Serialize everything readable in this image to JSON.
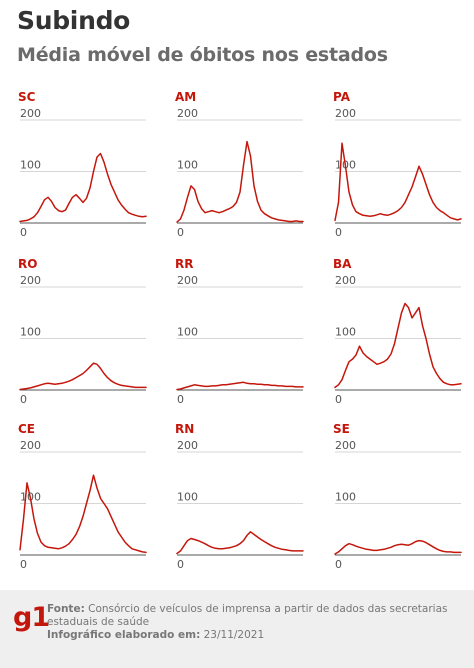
{
  "header": {
    "title": "Subindo",
    "subtitle": "Média móvel de óbitos nos estados"
  },
  "footer": {
    "logo": "g1",
    "source_label": "Fonte:",
    "source_text": "Consórcio de veículos de imprensa a partir de dados das secretarias estaduais de saúde",
    "made_label": "Infográfico elaborado em:",
    "made_date": "23/11/2021"
  },
  "colors": {
    "series": "#c4170c",
    "state_label": "#c4170c",
    "footer_bg": "#efefef"
  },
  "chart_data": [
    {
      "type": "line",
      "title": "SC",
      "ylim": [
        0,
        200
      ],
      "yticks": [
        0,
        100,
        200
      ],
      "grid": true,
      "series": [
        {
          "values": [
            3,
            4,
            5,
            8,
            12,
            20,
            32,
            45,
            50,
            42,
            30,
            24,
            22,
            25,
            38,
            50,
            55,
            48,
            40,
            48,
            68,
            100,
            128,
            135,
            118,
            95,
            75,
            60,
            45,
            35,
            27,
            20,
            17,
            15,
            13,
            12,
            13
          ]
        }
      ]
    },
    {
      "type": "line",
      "title": "AM",
      "ylim": [
        0,
        200
      ],
      "yticks": [
        0,
        100,
        200
      ],
      "grid": true,
      "series": [
        {
          "values": [
            2,
            8,
            25,
            50,
            72,
            65,
            42,
            28,
            20,
            22,
            24,
            22,
            20,
            22,
            25,
            28,
            32,
            40,
            60,
            112,
            158,
            130,
            72,
            42,
            25,
            18,
            14,
            10,
            8,
            6,
            5,
            4,
            3,
            3,
            4,
            3,
            3
          ]
        }
      ]
    },
    {
      "type": "line",
      "title": "PA",
      "ylim": [
        0,
        200
      ],
      "yticks": [
        0,
        100,
        200
      ],
      "grid": true,
      "series": [
        {
          "values": [
            5,
            40,
            155,
            110,
            60,
            35,
            22,
            18,
            15,
            14,
            13,
            14,
            16,
            18,
            16,
            15,
            17,
            20,
            24,
            30,
            40,
            55,
            70,
            90,
            110,
            95,
            75,
            55,
            40,
            30,
            24,
            20,
            15,
            10,
            8,
            6,
            8
          ]
        }
      ]
    },
    {
      "type": "line",
      "title": "RO",
      "ylim": [
        0,
        200
      ],
      "yticks": [
        0,
        100,
        200
      ],
      "grid": true,
      "series": [
        {
          "values": [
            1,
            2,
            3,
            4,
            6,
            8,
            10,
            12,
            13,
            12,
            11,
            12,
            13,
            15,
            17,
            20,
            24,
            28,
            32,
            38,
            45,
            52,
            50,
            42,
            32,
            24,
            18,
            14,
            11,
            9,
            8,
            7,
            6,
            5,
            5,
            5,
            5
          ]
        }
      ]
    },
    {
      "type": "line",
      "title": "RR",
      "ylim": [
        0,
        200
      ],
      "yticks": [
        0,
        100,
        200
      ],
      "grid": true,
      "series": [
        {
          "values": [
            1,
            2,
            4,
            6,
            8,
            10,
            9,
            8,
            7,
            7,
            8,
            8,
            9,
            10,
            10,
            11,
            12,
            13,
            14,
            15,
            13,
            12,
            12,
            11,
            11,
            10,
            10,
            9,
            9,
            8,
            8,
            7,
            7,
            7,
            6,
            6,
            6
          ]
        }
      ]
    },
    {
      "type": "line",
      "title": "BA",
      "ylim": [
        0,
        200
      ],
      "yticks": [
        0,
        100,
        200
      ],
      "grid": true,
      "series": [
        {
          "values": [
            5,
            10,
            20,
            38,
            55,
            60,
            68,
            85,
            72,
            65,
            60,
            55,
            50,
            52,
            55,
            60,
            70,
            90,
            120,
            150,
            168,
            160,
            140,
            150,
            160,
            125,
            100,
            70,
            45,
            32,
            22,
            15,
            12,
            10,
            10,
            11,
            12
          ]
        }
      ]
    },
    {
      "type": "line",
      "title": "CE",
      "ylim": [
        0,
        200
      ],
      "yticks": [
        0,
        100,
        200
      ],
      "grid": true,
      "series": [
        {
          "values": [
            10,
            70,
            140,
            110,
            70,
            42,
            25,
            18,
            15,
            14,
            13,
            12,
            14,
            17,
            22,
            30,
            40,
            55,
            75,
            100,
            125,
            155,
            130,
            110,
            100,
            90,
            75,
            60,
            45,
            35,
            25,
            18,
            12,
            10,
            8,
            6,
            5
          ]
        }
      ]
    },
    {
      "type": "line",
      "title": "RN",
      "ylim": [
        0,
        200
      ],
      "yticks": [
        0,
        100,
        200
      ],
      "grid": true,
      "series": [
        {
          "values": [
            3,
            8,
            18,
            28,
            32,
            30,
            28,
            25,
            22,
            18,
            15,
            13,
            12,
            12,
            13,
            14,
            16,
            18,
            22,
            28,
            38,
            45,
            40,
            35,
            30,
            26,
            22,
            18,
            15,
            13,
            11,
            10,
            9,
            8,
            8,
            8,
            8
          ]
        }
      ]
    },
    {
      "type": "line",
      "title": "SE",
      "ylim": [
        0,
        200
      ],
      "yticks": [
        0,
        100,
        200
      ],
      "grid": true,
      "series": [
        {
          "values": [
            2,
            6,
            12,
            18,
            22,
            20,
            17,
            15,
            13,
            11,
            10,
            9,
            9,
            10,
            11,
            13,
            15,
            18,
            20,
            21,
            20,
            19,
            22,
            26,
            28,
            27,
            24,
            20,
            16,
            12,
            9,
            7,
            6,
            6,
            5,
            5,
            5
          ]
        }
      ]
    }
  ]
}
